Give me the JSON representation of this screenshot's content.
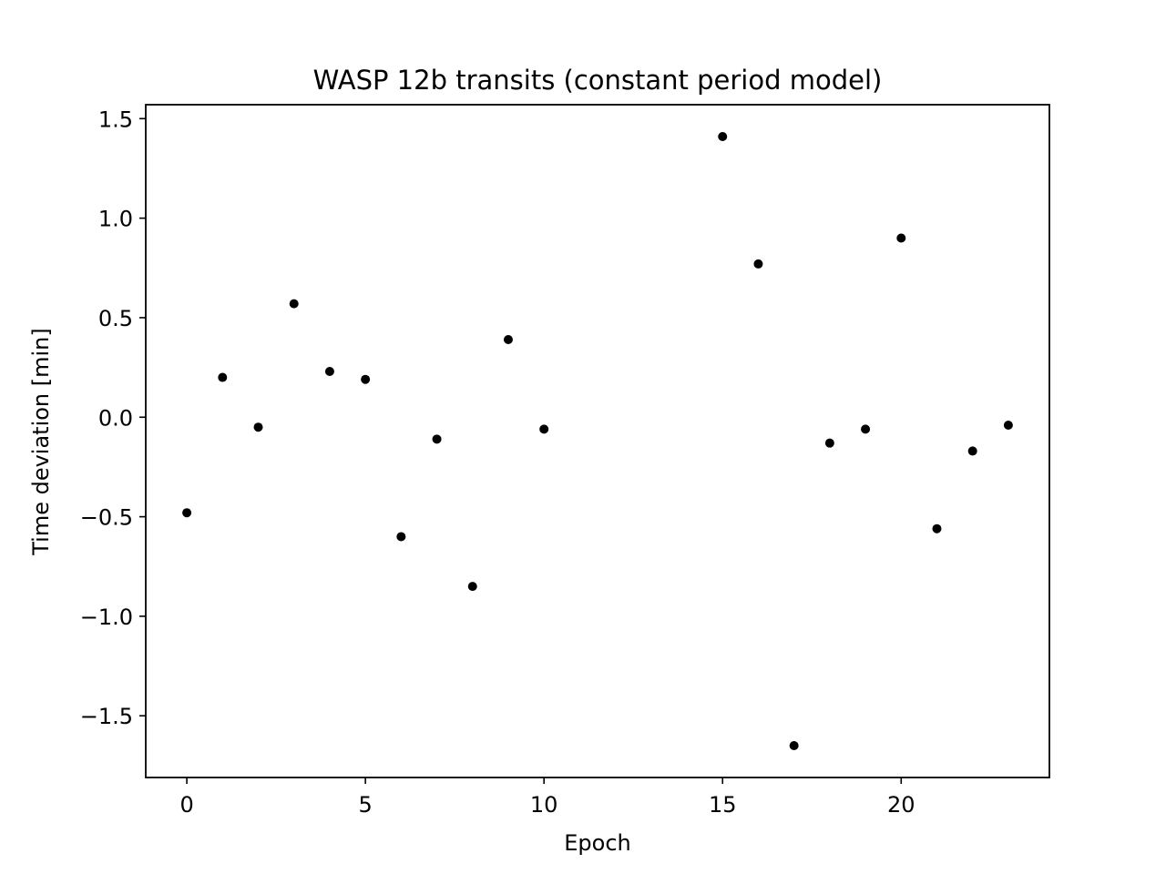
{
  "chart_data": {
    "type": "scatter",
    "title": "WASP 12b transits (constant period model)",
    "xlabel": "Epoch",
    "ylabel": "Time deviation [min]",
    "xlim": [
      -1.15,
      24.15
    ],
    "ylim": [
      -1.81,
      1.57
    ],
    "xticks": [
      0,
      5,
      10,
      15,
      20
    ],
    "xtick_labels": [
      "0",
      "5",
      "10",
      "15",
      "20"
    ],
    "yticks": [
      1.5,
      1.0,
      0.5,
      0.0,
      -0.5,
      -1.0,
      -1.5
    ],
    "ytick_labels": [
      "1.5",
      "1.0",
      "0.5",
      "0.0",
      "−0.5",
      "−1.0",
      "−1.5"
    ],
    "grid": false,
    "marker_color": "#000000",
    "series": [
      {
        "x": [
          0,
          1,
          2,
          3,
          4,
          5,
          6,
          7,
          8,
          9,
          10,
          15,
          16,
          17,
          18,
          19,
          20,
          21,
          22,
          23
        ],
        "y": [
          -0.48,
          0.2,
          -0.05,
          0.57,
          0.23,
          0.19,
          -0.6,
          -0.11,
          -0.85,
          0.39,
          -0.06,
          1.41,
          0.77,
          -1.65,
          -0.13,
          -0.06,
          0.9,
          -0.56,
          -0.17,
          -0.04
        ]
      }
    ]
  }
}
